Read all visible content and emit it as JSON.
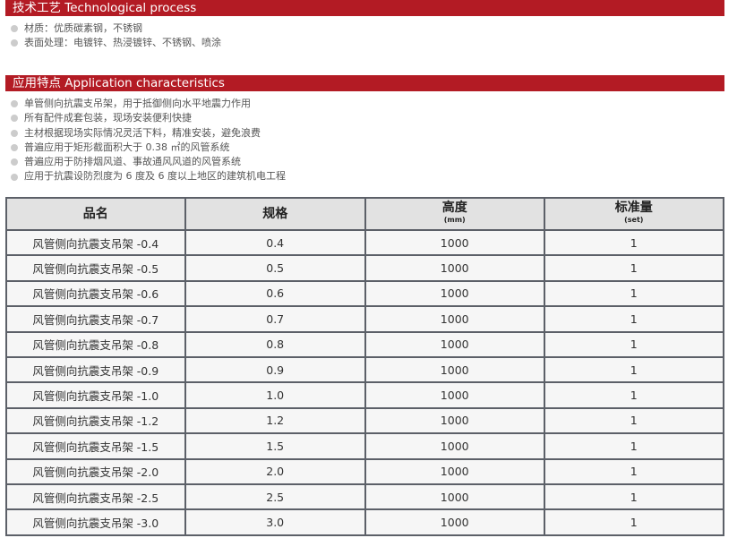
{
  "process": {
    "title": "技术工艺 Technological process",
    "items": [
      "材质：优质碳素钢，不锈钢",
      "表面处理：电镀锌、热浸镀锌、不锈钢、喷涂"
    ]
  },
  "application": {
    "title": "应用特点 Application characteristics",
    "items": [
      "单管侧向抗震支吊架，用于抵御侧向水平地震力作用",
      "所有配件成套包装，现场安装便利快捷",
      "主材根据现场实际情况灵活下料，精准安装，避免浪费",
      "普遍应用于矩形截面积大于 0.38 ㎡的风管系统",
      "普遍应用于防排烟风道、事故通风风道的风管系统",
      "应用于抗震设防烈度为 6 度及 6 度以上地区的建筑机电工程"
    ]
  },
  "table": {
    "headers": [
      {
        "label": "品名",
        "unit": ""
      },
      {
        "label": "规格",
        "unit": ""
      },
      {
        "label": "高度",
        "unit": "(mm)"
      },
      {
        "label": "标准量",
        "unit": "(set)"
      }
    ],
    "rows": [
      [
        "风管侧向抗震支吊架 -0.4",
        "0.4",
        "1000",
        "1"
      ],
      [
        "风管侧向抗震支吊架 -0.5",
        "0.5",
        "1000",
        "1"
      ],
      [
        "风管侧向抗震支吊架 -0.6",
        "0.6",
        "1000",
        "1"
      ],
      [
        "风管侧向抗震支吊架 -0.7",
        "0.7",
        "1000",
        "1"
      ],
      [
        "风管侧向抗震支吊架 -0.8",
        "0.8",
        "1000",
        "1"
      ],
      [
        "风管侧向抗震支吊架 -0.9",
        "0.9",
        "1000",
        "1"
      ],
      [
        "风管侧向抗震支吊架 -1.0",
        "1.0",
        "1000",
        "1"
      ],
      [
        "风管侧向抗震支吊架 -1.2",
        "1.2",
        "1000",
        "1"
      ],
      [
        "风管侧向抗震支吊架 -1.5",
        "1.5",
        "1000",
        "1"
      ],
      [
        "风管侧向抗震支吊架 -2.0",
        "2.0",
        "1000",
        "1"
      ],
      [
        "风管侧向抗震支吊架 -2.5",
        "2.5",
        "1000",
        "1"
      ],
      [
        "风管侧向抗震支吊架 -3.0",
        "3.0",
        "1000",
        "1"
      ]
    ]
  },
  "colors": {
    "accent": "#b31b24"
  }
}
